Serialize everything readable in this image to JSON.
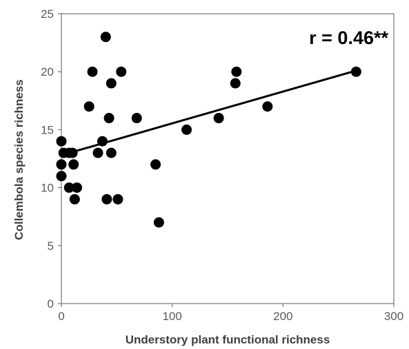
{
  "chart_data": {
    "type": "scatter",
    "title": "",
    "xlabel": "Understory plant functional richness",
    "ylabel": "Collembola species richness",
    "xlim": [
      0,
      300
    ],
    "ylim": [
      0,
      25
    ],
    "xticks": [
      0,
      100,
      200,
      300
    ],
    "yticks": [
      0,
      5,
      10,
      15,
      20,
      25
    ],
    "xtick_labels": [
      "0",
      "100",
      "200",
      "300"
    ],
    "ytick_labels": [
      "0",
      "5",
      "10",
      "15",
      "20",
      "25"
    ],
    "annotation": "r = 0.46**",
    "grid": false,
    "legend": "none",
    "marker_color": "#000000",
    "line_color": "#000000",
    "points": [
      {
        "x": 0,
        "y": 14
      },
      {
        "x": 0,
        "y": 12
      },
      {
        "x": 0,
        "y": 11
      },
      {
        "x": 2,
        "y": 13
      },
      {
        "x": 7,
        "y": 13
      },
      {
        "x": 7,
        "y": 10
      },
      {
        "x": 10,
        "y": 13
      },
      {
        "x": 11,
        "y": 12
      },
      {
        "x": 12,
        "y": 9
      },
      {
        "x": 14,
        "y": 10
      },
      {
        "x": 25,
        "y": 17
      },
      {
        "x": 28,
        "y": 20
      },
      {
        "x": 33,
        "y": 13
      },
      {
        "x": 37,
        "y": 14
      },
      {
        "x": 40,
        "y": 23
      },
      {
        "x": 41,
        "y": 9
      },
      {
        "x": 43,
        "y": 16
      },
      {
        "x": 45,
        "y": 19
      },
      {
        "x": 45,
        "y": 13
      },
      {
        "x": 51,
        "y": 9
      },
      {
        "x": 54,
        "y": 20
      },
      {
        "x": 68,
        "y": 16
      },
      {
        "x": 85,
        "y": 12
      },
      {
        "x": 88,
        "y": 7
      },
      {
        "x": 113,
        "y": 15
      },
      {
        "x": 142,
        "y": 16
      },
      {
        "x": 157,
        "y": 19
      },
      {
        "x": 158,
        "y": 20
      },
      {
        "x": 186,
        "y": 17
      },
      {
        "x": 266,
        "y": 20
      }
    ],
    "trendline": {
      "x": [
        0,
        266
      ],
      "y": [
        12.8,
        20.1
      ]
    }
  }
}
